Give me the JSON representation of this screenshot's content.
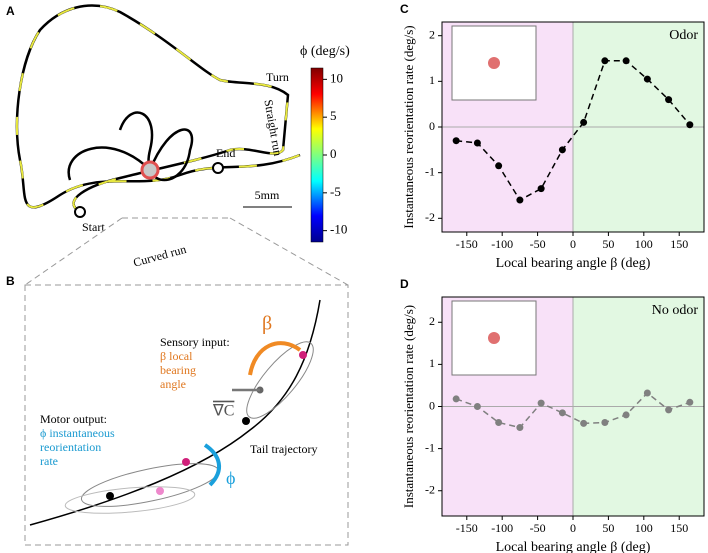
{
  "panels": {
    "a": {
      "label": "A",
      "start": "Start",
      "end": "End",
      "turn": "Turn",
      "straight": "Straight run",
      "curved": "Curved run",
      "scale": "5mm",
      "colorbar": {
        "label": "ϕ (deg/s)",
        "range": [
          -11.5,
          11.5
        ],
        "ticks": [
          10,
          5,
          0,
          -5,
          -10
        ]
      }
    },
    "b": {
      "label": "B",
      "sensory": "Sensory input:",
      "beta": "β",
      "beta_desc_1": "β local",
      "beta_desc_2": "bearing",
      "beta_desc_3": "angle",
      "grad": "∇C",
      "motor": "Motor output:",
      "phi_desc_1": "ϕ instantaneous",
      "phi_desc_2": "reorientation",
      "phi_desc_3": "rate",
      "tail": "Tail trajectory",
      "phi": "ϕ"
    }
  },
  "chart_data": [
    {
      "type": "line",
      "panel": "C",
      "annotation": "Odor",
      "xlabel": "Local bearing angle β (deg)",
      "ylabel": "Instantaneous reorientation rate (deg/s)",
      "x": [
        -165,
        -135,
        -105,
        -75,
        -45,
        -15,
        15,
        45,
        75,
        105,
        135,
        165
      ],
      "series": [
        {
          "color": "#000000",
          "values": [
            -0.3,
            -0.35,
            -0.85,
            -1.6,
            -1.35,
            -0.5,
            0.1,
            1.45,
            1.45,
            1.05,
            0.6,
            0.05
          ]
        }
      ],
      "xlim": [
        -185,
        185
      ],
      "ylim": [
        -2.3,
        2.3
      ],
      "xticks": [
        -150,
        -100,
        -50,
        0,
        50,
        100,
        150
      ],
      "yticks": [
        -2,
        -1,
        0,
        1,
        2
      ],
      "shade_left": "#f8e1f8",
      "shade_right": "#e2f8e2"
    },
    {
      "type": "line",
      "panel": "D",
      "annotation": "No odor",
      "xlabel": "Local bearing angle β (deg)",
      "ylabel": "Instantaneous reorientation rate (deg/s)",
      "x": [
        -165,
        -135,
        -105,
        -75,
        -45,
        -15,
        15,
        45,
        75,
        105,
        135,
        165
      ],
      "series": [
        {
          "color": "#808080",
          "values": [
            0.18,
            0.0,
            -0.38,
            -0.5,
            0.08,
            -0.15,
            -0.4,
            -0.38,
            -0.2,
            0.32,
            -0.08,
            0.1
          ]
        }
      ],
      "xlim": [
        -185,
        185
      ],
      "ylim": [
        -2.6,
        2.6
      ],
      "xticks": [
        -150,
        -100,
        -50,
        0,
        50,
        100,
        150
      ],
      "yticks": [
        -2,
        -1,
        0,
        1,
        2
      ],
      "shade_left": "#f8e1f8",
      "shade_right": "#e2f8e2"
    }
  ]
}
